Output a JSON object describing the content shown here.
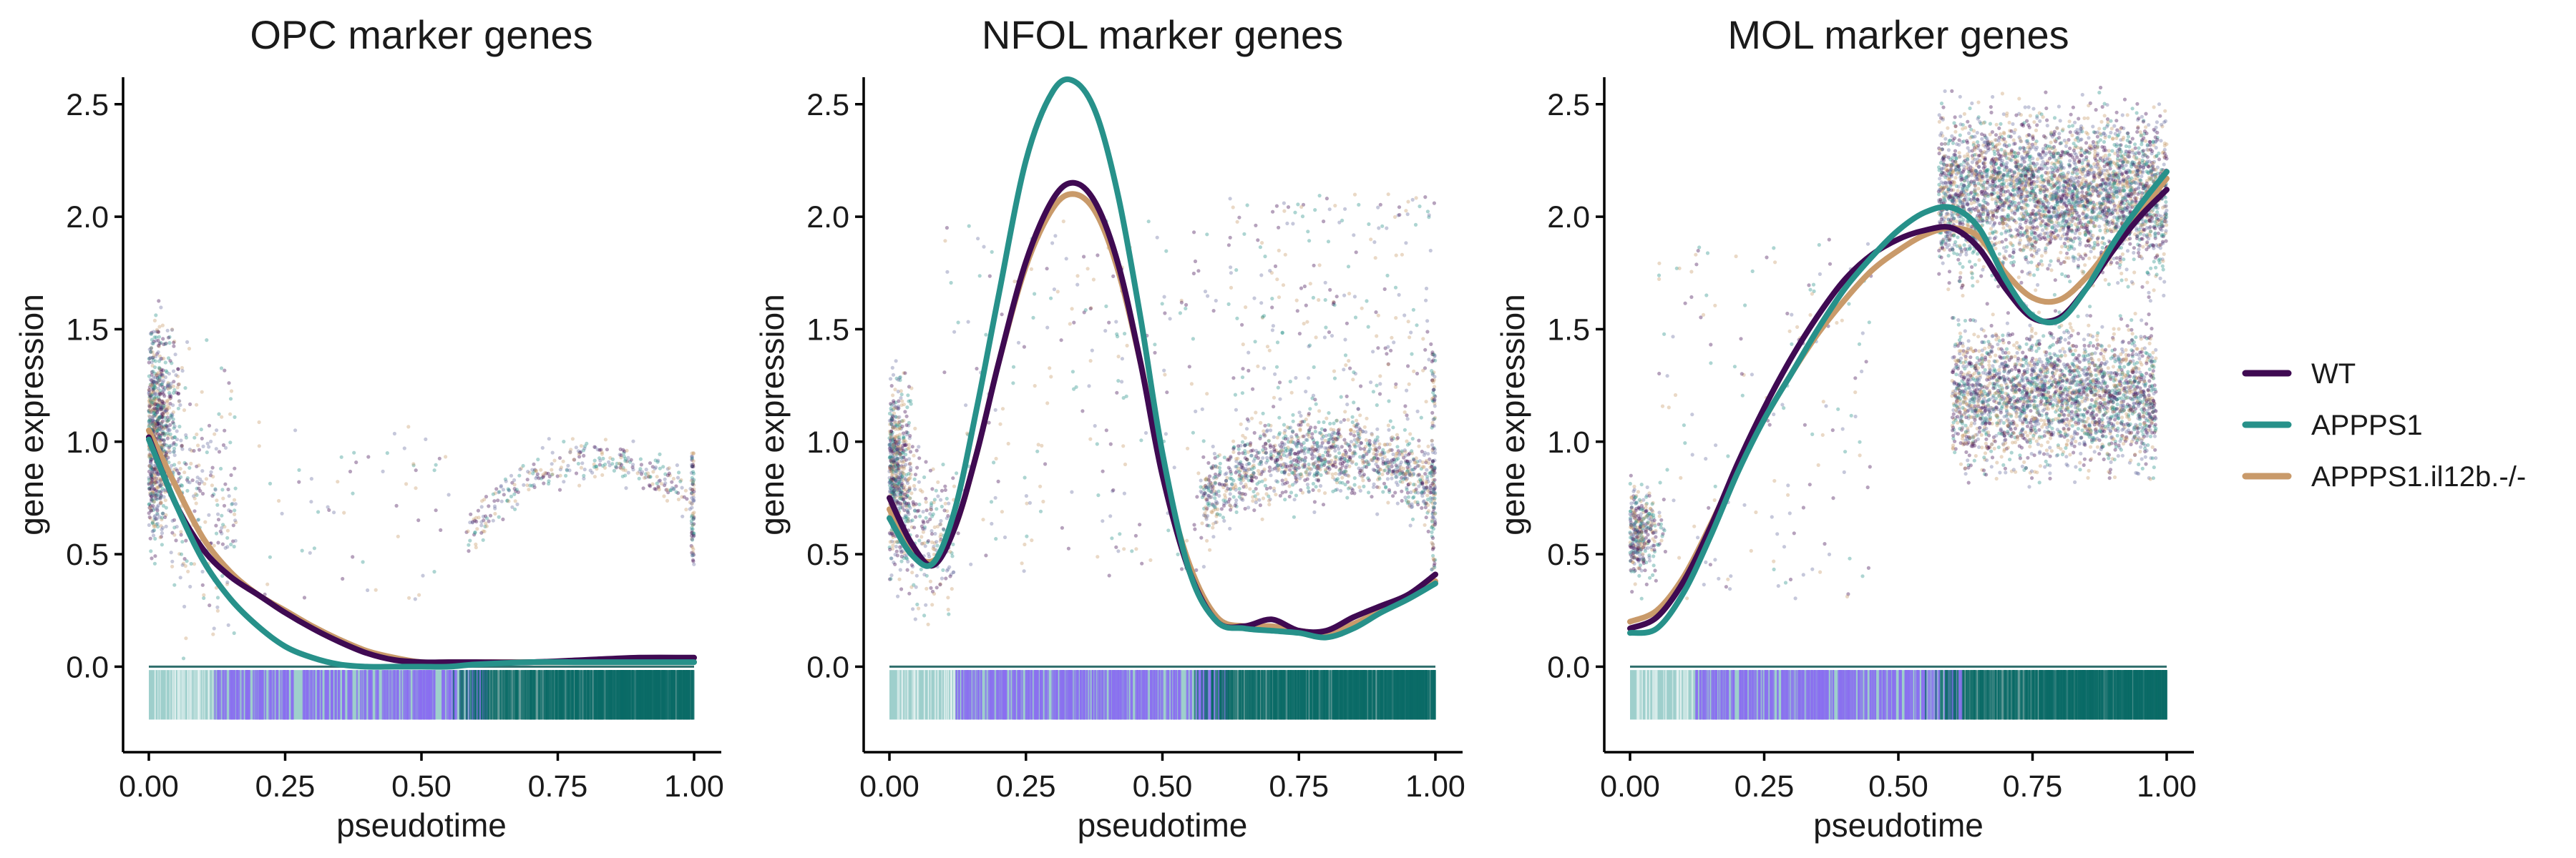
{
  "chart_data": [
    {
      "type": "scatter",
      "title": "OPC marker genes",
      "xlabel": "pseudotime",
      "ylabel": "gene expression",
      "xlim": [
        0,
        1
      ],
      "ylim": [
        -0.38,
        2.62
      ],
      "xticks": [
        "0.00",
        "0.25",
        "0.50",
        "0.75",
        "1.00"
      ],
      "yticks": [
        "0.0",
        "0.5",
        "1.0",
        "1.5",
        "2.0",
        "2.5"
      ],
      "grid": false,
      "series": [
        {
          "name": "WT",
          "x": [
            0,
            0.05,
            0.1,
            0.15,
            0.2,
            0.25,
            0.3,
            0.35,
            0.4,
            0.45,
            0.5,
            0.55,
            0.6,
            0.7,
            0.8,
            0.9,
            1.0
          ],
          "y": [
            1.02,
            0.72,
            0.52,
            0.4,
            0.32,
            0.24,
            0.17,
            0.11,
            0.06,
            0.03,
            0.02,
            0.02,
            0.02,
            0.02,
            0.03,
            0.04,
            0.04
          ]
        },
        {
          "name": "APPPS1",
          "x": [
            0,
            0.05,
            0.1,
            0.15,
            0.2,
            0.25,
            0.3,
            0.35,
            0.4,
            0.45,
            0.5,
            0.55,
            0.6,
            0.7,
            0.8,
            0.9,
            1.0
          ],
          "y": [
            1.01,
            0.72,
            0.47,
            0.3,
            0.18,
            0.09,
            0.04,
            0.01,
            0.0,
            0.0,
            0.0,
            0.0,
            0.01,
            0.02,
            0.02,
            0.02,
            0.02
          ]
        },
        {
          "name": "APPPS1.il12b.-/-",
          "x": [
            0,
            0.05,
            0.1,
            0.15,
            0.2,
            0.25,
            0.3,
            0.35,
            0.4,
            0.45,
            0.5,
            0.55,
            0.6,
            0.7,
            0.8,
            0.9,
            1.0
          ],
          "y": [
            1.05,
            0.8,
            0.57,
            0.42,
            0.32,
            0.25,
            0.18,
            0.12,
            0.07,
            0.04,
            0.02,
            0.02,
            0.02,
            0.02,
            0.02,
            0.02,
            0.02
          ]
        }
      ]
    },
    {
      "type": "scatter",
      "title": "NFOL marker genes",
      "xlabel": "pseudotime",
      "ylabel": "gene expression",
      "xlim": [
        0,
        1
      ],
      "ylim": [
        -0.38,
        2.62
      ],
      "xticks": [
        "0.00",
        "0.25",
        "0.50",
        "0.75",
        "1.00"
      ],
      "yticks": [
        "0.0",
        "0.5",
        "1.0",
        "1.5",
        "2.0",
        "2.5"
      ],
      "grid": false,
      "series": [
        {
          "name": "WT",
          "x": [
            0,
            0.04,
            0.08,
            0.12,
            0.16,
            0.2,
            0.25,
            0.3,
            0.34,
            0.38,
            0.42,
            0.46,
            0.5,
            0.55,
            0.6,
            0.65,
            0.7,
            0.75,
            0.8,
            0.85,
            0.9,
            0.95,
            1.0
          ],
          "y": [
            0.75,
            0.55,
            0.45,
            0.62,
            0.95,
            1.35,
            1.8,
            2.08,
            2.15,
            2.05,
            1.78,
            1.35,
            0.85,
            0.42,
            0.2,
            0.18,
            0.21,
            0.16,
            0.16,
            0.22,
            0.27,
            0.32,
            0.41
          ]
        },
        {
          "name": "APPPS1",
          "x": [
            0,
            0.04,
            0.08,
            0.12,
            0.16,
            0.2,
            0.25,
            0.3,
            0.34,
            0.38,
            0.42,
            0.46,
            0.5,
            0.55,
            0.6,
            0.65,
            0.7,
            0.75,
            0.8,
            0.85,
            0.9,
            0.95,
            1.0
          ],
          "y": [
            0.66,
            0.5,
            0.46,
            0.7,
            1.15,
            1.65,
            2.25,
            2.56,
            2.6,
            2.45,
            2.08,
            1.55,
            0.95,
            0.42,
            0.2,
            0.17,
            0.16,
            0.15,
            0.13,
            0.17,
            0.24,
            0.3,
            0.37
          ]
        },
        {
          "name": "APPPS1.il12b.-/-",
          "x": [
            0,
            0.04,
            0.08,
            0.12,
            0.16,
            0.2,
            0.25,
            0.3,
            0.34,
            0.38,
            0.42,
            0.46,
            0.5,
            0.55,
            0.6,
            0.65,
            0.7,
            0.75,
            0.8,
            0.85,
            0.9,
            0.95,
            1.0
          ],
          "y": [
            0.7,
            0.52,
            0.47,
            0.62,
            0.95,
            1.35,
            1.78,
            2.04,
            2.1,
            2.01,
            1.75,
            1.35,
            0.88,
            0.45,
            0.22,
            0.18,
            0.18,
            0.16,
            0.15,
            0.19,
            0.25,
            0.31,
            0.38
          ]
        }
      ]
    },
    {
      "type": "scatter",
      "title": "MOL marker genes",
      "xlabel": "pseudotime",
      "ylabel": "gene expression",
      "xlim": [
        0,
        1
      ],
      "ylim": [
        -0.38,
        2.62
      ],
      "xticks": [
        "0.00",
        "0.25",
        "0.50",
        "0.75",
        "1.00"
      ],
      "yticks": [
        "0.0",
        "0.5",
        "1.0",
        "1.5",
        "2.0",
        "2.5"
      ],
      "grid": false,
      "series": [
        {
          "name": "WT",
          "x": [
            0,
            0.05,
            0.1,
            0.15,
            0.2,
            0.25,
            0.3,
            0.35,
            0.4,
            0.45,
            0.5,
            0.55,
            0.6,
            0.65,
            0.7,
            0.75,
            0.8,
            0.85,
            0.9,
            0.95,
            1.0
          ],
          "y": [
            0.17,
            0.22,
            0.38,
            0.62,
            0.9,
            1.15,
            1.37,
            1.56,
            1.72,
            1.83,
            1.9,
            1.94,
            1.95,
            1.86,
            1.68,
            1.55,
            1.55,
            1.68,
            1.85,
            2.0,
            2.12
          ]
        },
        {
          "name": "APPPS1",
          "x": [
            0,
            0.05,
            0.1,
            0.15,
            0.2,
            0.25,
            0.3,
            0.35,
            0.4,
            0.45,
            0.5,
            0.55,
            0.6,
            0.65,
            0.7,
            0.75,
            0.8,
            0.85,
            0.9,
            0.95,
            1.0
          ],
          "y": [
            0.15,
            0.17,
            0.33,
            0.58,
            0.86,
            1.1,
            1.3,
            1.5,
            1.68,
            1.82,
            1.94,
            2.02,
            2.04,
            1.95,
            1.72,
            1.56,
            1.54,
            1.68,
            1.88,
            2.05,
            2.2
          ]
        },
        {
          "name": "APPPS1.il12b.-/-",
          "x": [
            0,
            0.05,
            0.1,
            0.15,
            0.2,
            0.25,
            0.3,
            0.35,
            0.4,
            0.45,
            0.5,
            0.55,
            0.6,
            0.65,
            0.7,
            0.75,
            0.8,
            0.85,
            0.9,
            0.95,
            1.0
          ],
          "y": [
            0.2,
            0.25,
            0.4,
            0.63,
            0.88,
            1.1,
            1.3,
            1.48,
            1.63,
            1.76,
            1.85,
            1.92,
            1.95,
            1.91,
            1.75,
            1.64,
            1.63,
            1.73,
            1.88,
            2.02,
            2.17
          ]
        }
      ]
    }
  ],
  "legend": {
    "placement": "right",
    "entries": [
      {
        "name": "WT",
        "color": "#3f0a52"
      },
      {
        "name": "APPPS1",
        "color": "#27918a"
      },
      {
        "name": "APPPS1.il12b.-/-",
        "color": "#c99a6a"
      }
    ]
  },
  "colors": {
    "rug_early": "#9ecfcc",
    "rug_mid": "#8a6ff0",
    "rug_late": "#0a6b67"
  }
}
